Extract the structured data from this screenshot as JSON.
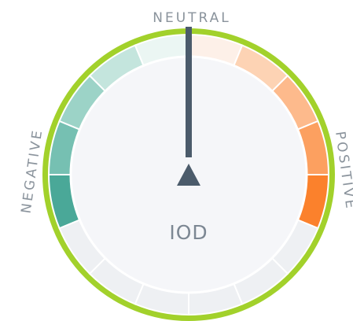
{
  "gauge": {
    "top_label": "NEUTRAL",
    "left_label": "NEGATIVE",
    "right_label": "POSITIVE",
    "center_label": "IOD"
  }
}
